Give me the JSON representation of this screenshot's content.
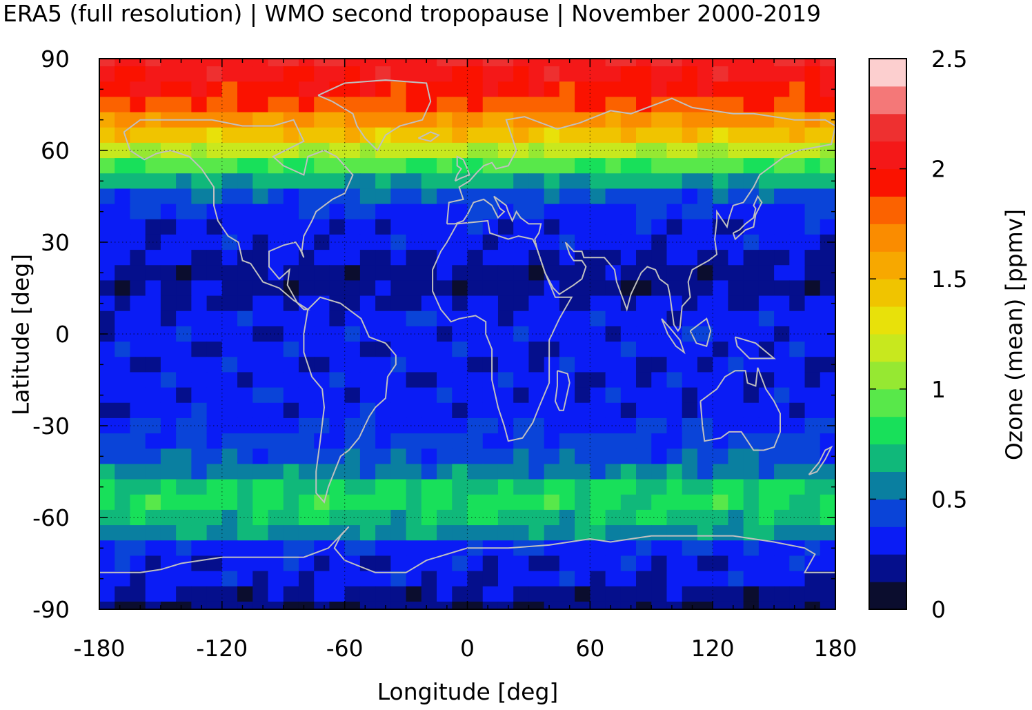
{
  "chart_data": {
    "type": "heatmap",
    "title": "ERA5 (full resolution) | WMO second tropopause | November 2000-2019",
    "xlabel": "Longitude [deg]",
    "ylabel": "Latitude [deg]",
    "xlim": [
      -180,
      180
    ],
    "ylim": [
      -90,
      90
    ],
    "xticks": [
      -180,
      -120,
      -60,
      0,
      60,
      120,
      180
    ],
    "yticks": [
      90,
      60,
      30,
      0,
      -30,
      -60,
      -90
    ],
    "grid": true,
    "colorbar": {
      "label": "Ozone (mean) [ppmv]",
      "range": [
        0,
        2.5
      ],
      "ticks": [
        "2.5",
        "2",
        "1.5",
        "1",
        "0.5",
        "0"
      ],
      "levels": [
        0,
        0.125,
        0.25,
        0.375,
        0.5,
        0.625,
        0.75,
        0.875,
        1.0,
        1.125,
        1.25,
        1.375,
        1.5,
        1.625,
        1.75,
        1.875,
        2.0,
        2.125,
        2.25,
        2.375
      ],
      "colors": [
        "#0b0d2e",
        "#050f8c",
        "#0a1cf5",
        "#0a44d8",
        "#0a7fa0",
        "#10b87a",
        "#18e05a",
        "#58e84a",
        "#96e832",
        "#c8e81e",
        "#e8e10a",
        "#f0c400",
        "#f7a800",
        "#fa8c00",
        "#fb6200",
        "#fa1200",
        "#f41818",
        "#ee3030",
        "#f47878",
        "#fccfcf"
      ]
    },
    "zonal_profile": {
      "latitude": [
        90,
        85,
        80,
        75,
        70,
        65,
        60,
        55,
        50,
        45,
        40,
        35,
        30,
        25,
        20,
        15,
        10,
        5,
        0,
        -5,
        -10,
        -15,
        -20,
        -25,
        -30,
        -35,
        -40,
        -45,
        -50,
        -55,
        -60,
        -65,
        -70,
        -75,
        -80,
        -85,
        -90
      ],
      "ozone_ppmv": [
        2.1,
        2.05,
        1.95,
        1.85,
        1.65,
        1.45,
        1.15,
        0.9,
        0.65,
        0.45,
        0.35,
        0.3,
        0.3,
        0.25,
        0.2,
        0.2,
        0.25,
        0.3,
        0.3,
        0.3,
        0.3,
        0.3,
        0.3,
        0.3,
        0.35,
        0.4,
        0.45,
        0.55,
        0.75,
        0.8,
        0.7,
        0.6,
        0.35,
        0.3,
        0.3,
        0.2,
        0.15
      ]
    }
  }
}
